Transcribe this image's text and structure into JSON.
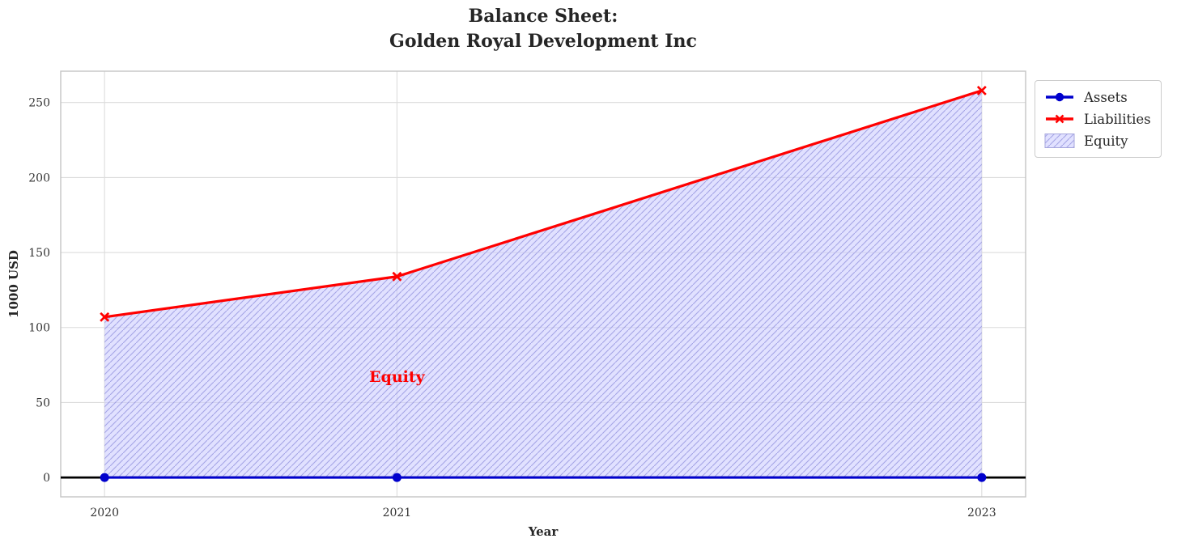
{
  "figure_title": "Balance Sheet:\nGolden Royal Development Inc",
  "chart_data": {
    "type": "line",
    "title": "Balance Sheet:\nGolden Royal Development Inc",
    "xlabel": "Year",
    "ylabel": "1000 USD",
    "x": [
      2020,
      2021,
      2023
    ],
    "xticks": [
      "2020",
      "2021",
      "2023"
    ],
    "yticks": [
      0,
      50,
      100,
      150,
      200,
      250
    ],
    "xlim": [
      2019.85,
      2023.15
    ],
    "ylim": [
      -12.9,
      270.9
    ],
    "grid": true,
    "series": [
      {
        "name": "Assets",
        "values": [
          0,
          0,
          0
        ],
        "color": "#0000cd",
        "marker": "circle",
        "line_width": 3
      },
      {
        "name": "Liabilities",
        "values": [
          107,
          134,
          258
        ],
        "color": "#ff0000",
        "marker": "x",
        "line_width": 3.2
      }
    ],
    "area": {
      "name": "Equity",
      "between": [
        "Assets",
        "Liabilities"
      ],
      "fill_color": "#ccccff",
      "hatch": "///",
      "hatch_color": "#7b7bd6"
    },
    "annotation": {
      "text": "Equity",
      "x": 2021,
      "y": 67,
      "color": "#ff0000"
    },
    "zero_line": {
      "y": 0,
      "color": "#000000"
    },
    "legend_position": "outside-upper-right"
  },
  "legend": {
    "items": [
      {
        "label": "Assets"
      },
      {
        "label": "Liabilities"
      },
      {
        "label": "Equity"
      }
    ]
  }
}
